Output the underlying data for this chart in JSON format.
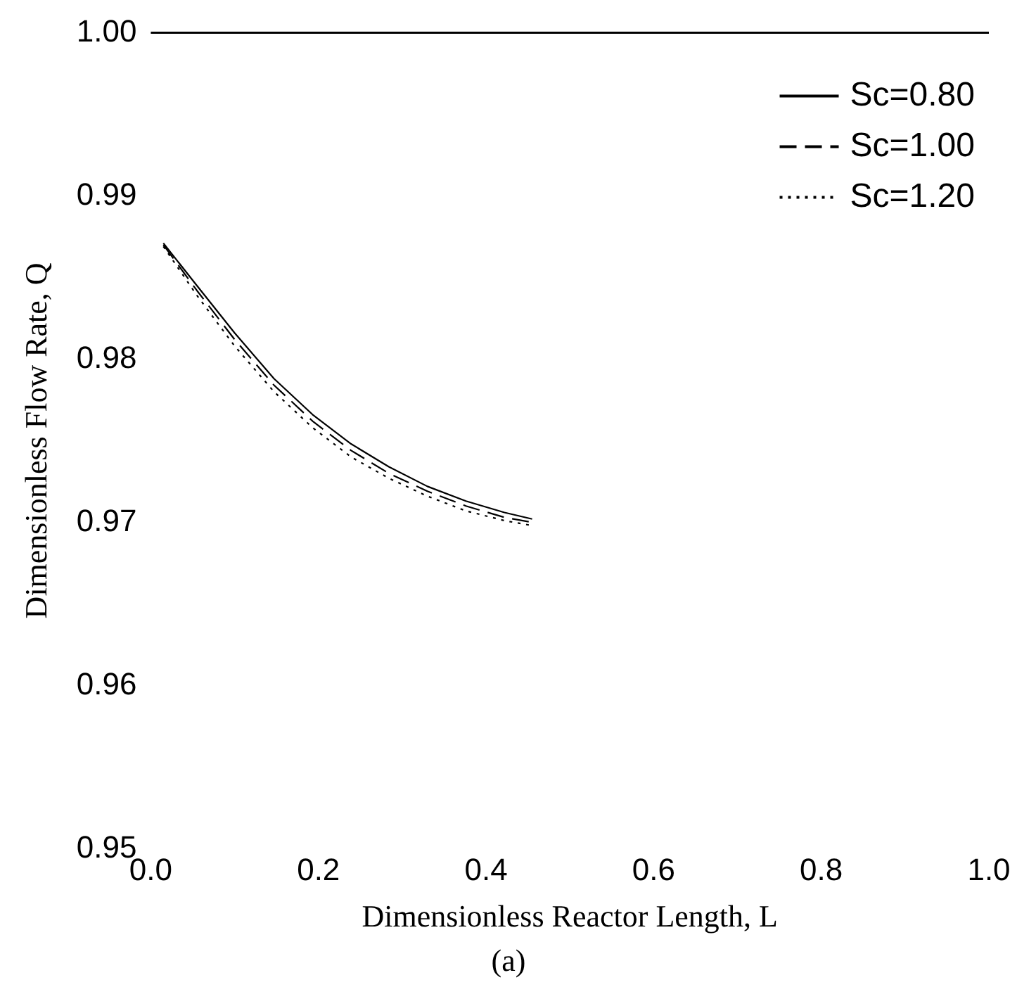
{
  "chart_data": {
    "type": "line",
    "xlabel": "Dimensionless Reactor Length, L",
    "ylabel": "Dimensionless Flow Rate, Q",
    "x": [
      0.015,
      0.055,
      0.1,
      0.147,
      0.193,
      0.239,
      0.284,
      0.33,
      0.376,
      0.422,
      0.455
    ],
    "series": [
      {
        "name": "Sc=0.80",
        "color": "#000000",
        "line_style": "solid",
        "values": [
          0.9871,
          0.9845,
          0.9816,
          0.9788,
          0.9766,
          0.9748,
          0.9734,
          0.9722,
          0.9713,
          0.9706,
          0.9702
        ]
      },
      {
        "name": "Sc=1.00",
        "color": "#000000",
        "line_style": "dashed",
        "values": [
          0.987,
          0.9842,
          0.9812,
          0.9784,
          0.9762,
          0.9744,
          0.973,
          0.9719,
          0.971,
          0.9703,
          0.97
        ]
      },
      {
        "name": "Sc=1.20",
        "color": "#000000",
        "line_style": "dotted",
        "values": [
          0.9869,
          0.9839,
          0.9808,
          0.978,
          0.9758,
          0.974,
          0.9727,
          0.9716,
          0.9707,
          0.9701,
          0.9698
        ]
      }
    ],
    "xlim": [
      0,
      1
    ],
    "xticks": [
      {
        "value": 0,
        "label": "0.0"
      },
      0.2,
      0.4,
      0.6,
      0.8,
      {
        "value": 1,
        "label": "1.0"
      }
    ],
    "ylim": [
      0.95,
      1
    ],
    "yticks": [
      0.95,
      0.96,
      0.97,
      0.98,
      0.99,
      {
        "value": 1,
        "label": "1.00"
      }
    ],
    "ref_lines": [
      {
        "axis": "y",
        "value": 1,
        "label": null,
        "color": "#000000"
      }
    ],
    "grid": false,
    "legend": "top right",
    "marker": "none",
    "annotations": [
      "(a)"
    ]
  }
}
